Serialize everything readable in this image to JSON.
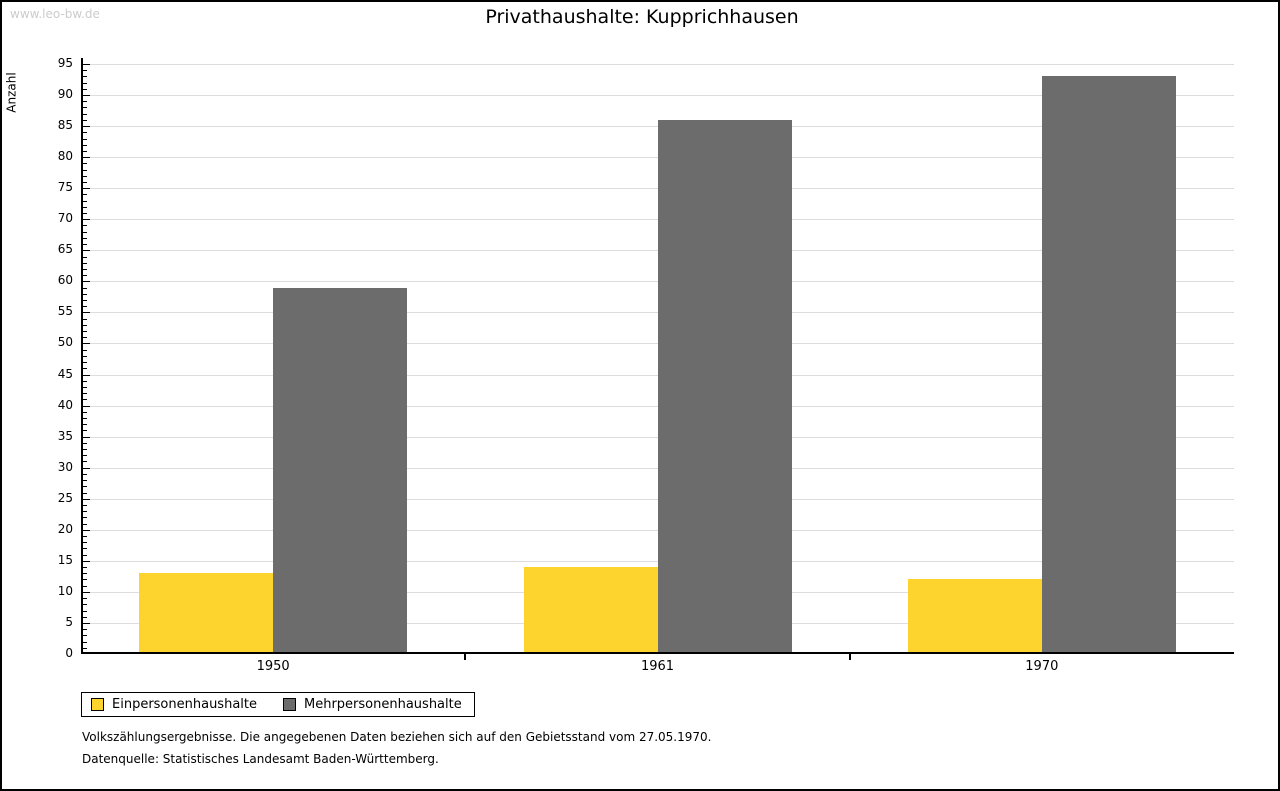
{
  "watermark": "www.leo-bw.de",
  "chart_data": {
    "type": "bar",
    "title": "Privathaushalte: Kupprichhausen",
    "ylabel": "Anzahl",
    "xlabel": "",
    "categories": [
      "1950",
      "1961",
      "1970"
    ],
    "series": [
      {
        "name": "Einpersonenhaushalte",
        "color": "#fcd42d",
        "values": [
          13,
          14,
          12
        ]
      },
      {
        "name": "Mehrpersonenhaushalte",
        "color": "#6c6c6c",
        "values": [
          59,
          86,
          93
        ]
      }
    ],
    "ylim": [
      0,
      95
    ],
    "y_major_step": 5,
    "y_minor_step": 1,
    "y_tick_labels": [
      "0",
      "5",
      "10",
      "15",
      "20",
      "25",
      "30",
      "35",
      "40",
      "45",
      "50",
      "55",
      "60",
      "65",
      "70",
      "75",
      "80",
      "85",
      "90",
      "95"
    ],
    "grid": true,
    "gridline_color": "#dddddd",
    "axis_color": "#000000",
    "legend_position": "bottom-left"
  },
  "footnotes": {
    "line1": "Volkszählungsergebnisse. Die angegebenen Daten beziehen sich auf den Gebietsstand vom 27.05.1970.",
    "line2": "Datenquelle: Statistisches Landesamt Baden-Württemberg."
  }
}
